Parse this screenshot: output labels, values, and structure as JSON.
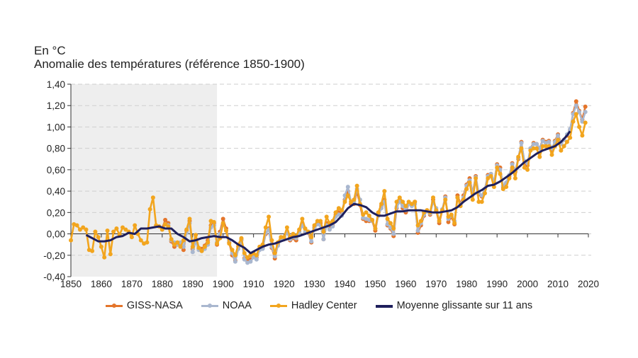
{
  "header": {
    "unit": "En °C",
    "title": "Anomalie des températures (référence 1850-1900)"
  },
  "chart_data": {
    "type": "line",
    "title": "Anomalie des températures (référence 1850-1900)",
    "ylabel": "En °C",
    "xlabel": "",
    "xlim": [
      1850,
      2020
    ],
    "ylim": [
      -0.4,
      1.4
    ],
    "grid": true,
    "reference_period_shaded": [
      1850,
      1898
    ],
    "x_ticks": [
      "1850",
      "1860",
      "1870",
      "1880",
      "1890",
      "1900",
      "1910",
      "1920",
      "1930",
      "1940",
      "1950",
      "1960",
      "1970",
      "1980",
      "1990",
      "2000",
      "2010",
      "2020"
    ],
    "y_ticks": [
      "1,40",
      "1,20",
      "1,00",
      "0,80",
      "0,60",
      "0,40",
      "0,20",
      "0,00",
      "-0,20",
      "-0,40"
    ],
    "legend_position": "bottom",
    "series": [
      {
        "name": "GISS-NASA",
        "color": "#e4752b",
        "x": [
          1880,
          1881,
          1882,
          1883,
          1884,
          1885,
          1886,
          1887,
          1888,
          1889,
          1890,
          1891,
          1892,
          1893,
          1894,
          1895,
          1896,
          1897,
          1898,
          1899,
          1900,
          1901,
          1902,
          1903,
          1904,
          1905,
          1906,
          1907,
          1908,
          1909,
          1910,
          1911,
          1912,
          1913,
          1914,
          1915,
          1916,
          1917,
          1918,
          1919,
          1920,
          1921,
          1922,
          1923,
          1924,
          1925,
          1926,
          1927,
          1928,
          1929,
          1930,
          1931,
          1932,
          1933,
          1934,
          1935,
          1936,
          1937,
          1938,
          1939,
          1940,
          1941,
          1942,
          1943,
          1944,
          1945,
          1946,
          1947,
          1948,
          1949,
          1950,
          1951,
          1952,
          1953,
          1954,
          1955,
          1956,
          1957,
          1958,
          1959,
          1960,
          1961,
          1962,
          1963,
          1964,
          1965,
          1966,
          1967,
          1968,
          1969,
          1970,
          1971,
          1972,
          1973,
          1974,
          1975,
          1976,
          1977,
          1978,
          1979,
          1980,
          1981,
          1982,
          1983,
          1984,
          1985,
          1986,
          1987,
          1988,
          1989,
          1990,
          1991,
          1992,
          1993,
          1994,
          1995,
          1996,
          1997,
          1998,
          1999,
          2000,
          2001,
          2002,
          2003,
          2004,
          2005,
          2006,
          2007,
          2008,
          2009,
          2010,
          2011,
          2012,
          2013,
          2014,
          2015,
          2016,
          2017,
          2018,
          2019
        ],
        "values": [
          0.05,
          0.13,
          0.1,
          -0.07,
          -0.12,
          -0.1,
          -0.1,
          -0.15,
          0.03,
          0.12,
          -0.14,
          -0.05,
          -0.14,
          -0.14,
          -0.11,
          -0.06,
          0.08,
          0.1,
          -0.1,
          0.02,
          0.14,
          0.05,
          -0.08,
          -0.2,
          -0.25,
          -0.12,
          -0.05,
          -0.23,
          -0.25,
          -0.24,
          -0.21,
          -0.22,
          -0.14,
          -0.13,
          0.0,
          0.05,
          -0.13,
          -0.23,
          -0.1,
          -0.05,
          -0.05,
          0.02,
          -0.06,
          -0.04,
          -0.06,
          0.02,
          0.1,
          0.01,
          0.01,
          -0.08,
          0.06,
          0.1,
          0.1,
          -0.05,
          0.1,
          0.05,
          0.08,
          0.18,
          0.2,
          0.18,
          0.32,
          0.4,
          0.28,
          0.28,
          0.4,
          0.27,
          0.14,
          0.12,
          0.12,
          0.12,
          0.03,
          0.18,
          0.26,
          0.32,
          0.08,
          0.05,
          -0.02,
          0.24,
          0.32,
          0.24,
          0.2,
          0.28,
          0.27,
          0.3,
          0.01,
          0.08,
          0.17,
          0.22,
          0.18,
          0.32,
          0.22,
          0.1,
          0.22,
          0.35,
          0.11,
          0.16,
          0.09,
          0.36,
          0.28,
          0.36,
          0.46,
          0.52,
          0.38,
          0.54,
          0.37,
          0.35,
          0.42,
          0.55,
          0.56,
          0.48,
          0.65,
          0.62,
          0.44,
          0.47,
          0.54,
          0.66,
          0.58,
          0.7,
          0.86,
          0.66,
          0.64,
          0.8,
          0.85,
          0.84,
          0.8,
          0.88,
          0.86,
          0.87,
          0.78,
          0.87,
          0.93,
          0.85,
          0.88,
          0.92,
          0.97,
          1.13,
          1.24,
          1.15,
          1.07,
          1.19
        ]
      },
      {
        "name": "NOAA",
        "color": "#a9b7cf",
        "x": [
          1880,
          1881,
          1882,
          1883,
          1884,
          1885,
          1886,
          1887,
          1888,
          1889,
          1890,
          1891,
          1892,
          1893,
          1894,
          1895,
          1896,
          1897,
          1898,
          1899,
          1900,
          1901,
          1902,
          1903,
          1904,
          1905,
          1906,
          1907,
          1908,
          1909,
          1910,
          1911,
          1912,
          1913,
          1914,
          1915,
          1916,
          1917,
          1918,
          1919,
          1920,
          1921,
          1922,
          1923,
          1924,
          1925,
          1926,
          1927,
          1928,
          1929,
          1930,
          1931,
          1932,
          1933,
          1934,
          1935,
          1936,
          1937,
          1938,
          1939,
          1940,
          1941,
          1942,
          1943,
          1944,
          1945,
          1946,
          1947,
          1948,
          1949,
          1950,
          1951,
          1952,
          1953,
          1954,
          1955,
          1956,
          1957,
          1958,
          1959,
          1960,
          1961,
          1962,
          1963,
          1964,
          1965,
          1966,
          1967,
          1968,
          1969,
          1970,
          1971,
          1972,
          1973,
          1974,
          1975,
          1976,
          1977,
          1978,
          1979,
          1980,
          1981,
          1982,
          1983,
          1984,
          1985,
          1986,
          1987,
          1988,
          1989,
          1990,
          1991,
          1992,
          1993,
          1994,
          1995,
          1996,
          1997,
          1998,
          1999,
          2000,
          2001,
          2002,
          2003,
          2004,
          2005,
          2006,
          2007,
          2008,
          2009,
          2010,
          2011,
          2012,
          2013,
          2014,
          2015,
          2016,
          2017,
          2018,
          2019
        ],
        "values": [
          0.04,
          0.09,
          0.08,
          -0.06,
          -0.08,
          -0.1,
          -0.08,
          -0.12,
          0.01,
          0.1,
          -0.17,
          -0.07,
          -0.15,
          -0.16,
          -0.14,
          -0.1,
          0.06,
          0.08,
          -0.08,
          0.0,
          0.1,
          0.03,
          -0.06,
          -0.18,
          -0.26,
          -0.14,
          -0.06,
          -0.24,
          -0.27,
          -0.26,
          -0.22,
          -0.24,
          -0.15,
          -0.14,
          0.01,
          0.04,
          -0.12,
          -0.21,
          -0.11,
          -0.06,
          -0.04,
          0.01,
          -0.05,
          -0.03,
          -0.04,
          0.01,
          0.08,
          0.02,
          0.02,
          -0.07,
          0.05,
          0.09,
          0.08,
          -0.05,
          0.08,
          0.04,
          0.07,
          0.16,
          0.18,
          0.17,
          0.36,
          0.44,
          0.3,
          0.3,
          0.42,
          0.32,
          0.15,
          0.14,
          0.13,
          0.12,
          0.05,
          0.17,
          0.24,
          0.3,
          0.09,
          0.06,
          0.0,
          0.25,
          0.3,
          0.26,
          0.22,
          0.28,
          0.26,
          0.28,
          0.03,
          0.1,
          0.18,
          0.21,
          0.19,
          0.3,
          0.24,
          0.12,
          0.23,
          0.34,
          0.14,
          0.17,
          0.12,
          0.34,
          0.27,
          0.34,
          0.45,
          0.5,
          0.38,
          0.53,
          0.38,
          0.36,
          0.42,
          0.54,
          0.56,
          0.49,
          0.64,
          0.6,
          0.45,
          0.48,
          0.55,
          0.65,
          0.59,
          0.71,
          0.85,
          0.68,
          0.66,
          0.8,
          0.84,
          0.84,
          0.8,
          0.87,
          0.85,
          0.86,
          0.8,
          0.86,
          0.92,
          0.84,
          0.88,
          0.93,
          0.98,
          1.12,
          1.2,
          1.14,
          1.05,
          1.14
        ]
      },
      {
        "name": "Hadley Center",
        "color": "#f2a51e",
        "x": [
          1850,
          1851,
          1852,
          1853,
          1854,
          1855,
          1856,
          1857,
          1858,
          1859,
          1860,
          1861,
          1862,
          1863,
          1864,
          1865,
          1866,
          1867,
          1868,
          1869,
          1870,
          1871,
          1872,
          1873,
          1874,
          1875,
          1876,
          1877,
          1878,
          1879,
          1880,
          1881,
          1882,
          1883,
          1884,
          1885,
          1886,
          1887,
          1888,
          1889,
          1890,
          1891,
          1892,
          1893,
          1894,
          1895,
          1896,
          1897,
          1898,
          1899,
          1900,
          1901,
          1902,
          1903,
          1904,
          1905,
          1906,
          1907,
          1908,
          1909,
          1910,
          1911,
          1912,
          1913,
          1914,
          1915,
          1916,
          1917,
          1918,
          1919,
          1920,
          1921,
          1922,
          1923,
          1924,
          1925,
          1926,
          1927,
          1928,
          1929,
          1930,
          1931,
          1932,
          1933,
          1934,
          1935,
          1936,
          1937,
          1938,
          1939,
          1940,
          1941,
          1942,
          1943,
          1944,
          1945,
          1946,
          1947,
          1948,
          1949,
          1950,
          1951,
          1952,
          1953,
          1954,
          1955,
          1956,
          1957,
          1958,
          1959,
          1960,
          1961,
          1962,
          1963,
          1964,
          1965,
          1966,
          1967,
          1968,
          1969,
          1970,
          1971,
          1972,
          1973,
          1974,
          1975,
          1976,
          1977,
          1978,
          1979,
          1980,
          1981,
          1982,
          1983,
          1984,
          1985,
          1986,
          1987,
          1988,
          1989,
          1990,
          1991,
          1992,
          1993,
          1994,
          1995,
          1996,
          1997,
          1998,
          1999,
          2000,
          2001,
          2002,
          2003,
          2004,
          2005,
          2006,
          2007,
          2008,
          2009,
          2010,
          2011,
          2012,
          2013,
          2014,
          2015,
          2016,
          2017,
          2018,
          2019
        ],
        "values": [
          -0.06,
          0.09,
          0.08,
          0.04,
          0.06,
          0.04,
          -0.15,
          -0.16,
          0.02,
          -0.03,
          -0.12,
          -0.22,
          0.03,
          -0.19,
          0.02,
          0.05,
          -0.01,
          0.06,
          0.04,
          0.02,
          -0.03,
          0.08,
          0.0,
          -0.06,
          -0.09,
          -0.08,
          0.23,
          0.34,
          0.08,
          0.07,
          0.04,
          0.09,
          0.07,
          -0.05,
          -0.1,
          -0.08,
          -0.12,
          -0.06,
          0.04,
          0.14,
          -0.12,
          -0.01,
          -0.13,
          -0.16,
          -0.12,
          -0.08,
          0.12,
          0.11,
          -0.09,
          -0.04,
          0.1,
          0.03,
          -0.09,
          -0.15,
          -0.2,
          -0.1,
          -0.04,
          -0.18,
          -0.22,
          -0.2,
          -0.18,
          -0.2,
          -0.12,
          -0.1,
          0.06,
          0.16,
          -0.06,
          -0.18,
          -0.08,
          -0.03,
          -0.03,
          0.06,
          -0.03,
          0.0,
          -0.02,
          0.04,
          0.14,
          0.05,
          0.02,
          -0.03,
          0.08,
          0.12,
          0.12,
          0.02,
          0.16,
          0.1,
          0.12,
          0.2,
          0.24,
          0.22,
          0.3,
          0.36,
          0.3,
          0.32,
          0.45,
          0.28,
          0.18,
          0.2,
          0.17,
          0.13,
          0.05,
          0.2,
          0.28,
          0.4,
          0.14,
          0.1,
          0.05,
          0.3,
          0.34,
          0.3,
          0.26,
          0.3,
          0.28,
          0.3,
          0.08,
          0.12,
          0.2,
          0.22,
          0.2,
          0.34,
          0.22,
          0.12,
          0.22,
          0.32,
          0.16,
          0.18,
          0.1,
          0.34,
          0.26,
          0.32,
          0.42,
          0.48,
          0.32,
          0.52,
          0.3,
          0.3,
          0.38,
          0.52,
          0.54,
          0.44,
          0.62,
          0.56,
          0.42,
          0.44,
          0.52,
          0.62,
          0.52,
          0.72,
          0.8,
          0.62,
          0.6,
          0.78,
          0.8,
          0.8,
          0.72,
          0.82,
          0.82,
          0.82,
          0.74,
          0.82,
          0.88,
          0.78,
          0.82,
          0.86,
          0.9,
          1.05,
          1.12,
          1.0,
          0.92,
          1.04
        ]
      },
      {
        "name": "Moyenne glissante sur 11 ans",
        "color": "#1e1f5c",
        "x": [
          1855,
          1857,
          1859,
          1861,
          1863,
          1865,
          1867,
          1869,
          1871,
          1873,
          1875,
          1877,
          1879,
          1881,
          1883,
          1885,
          1887,
          1889,
          1891,
          1893,
          1895,
          1897,
          1899,
          1901,
          1903,
          1905,
          1907,
          1909,
          1911,
          1913,
          1915,
          1917,
          1919,
          1921,
          1923,
          1925,
          1927,
          1929,
          1931,
          1933,
          1935,
          1937,
          1939,
          1941,
          1943,
          1945,
          1947,
          1949,
          1951,
          1953,
          1955,
          1957,
          1959,
          1961,
          1963,
          1965,
          1967,
          1969,
          1971,
          1973,
          1975,
          1977,
          1979,
          1981,
          1983,
          1985,
          1987,
          1989,
          1991,
          1993,
          1995,
          1997,
          1999,
          2001,
          2003,
          2005,
          2007,
          2009,
          2011,
          2013,
          2014
        ],
        "values": [
          -0.01,
          -0.04,
          -0.07,
          -0.07,
          -0.06,
          -0.03,
          -0.02,
          0.01,
          0.0,
          0.05,
          0.05,
          0.06,
          0.07,
          0.05,
          0.05,
          0.0,
          -0.03,
          -0.07,
          -0.06,
          -0.04,
          -0.03,
          -0.02,
          -0.03,
          -0.03,
          -0.06,
          -0.1,
          -0.13,
          -0.18,
          -0.15,
          -0.12,
          -0.1,
          -0.09,
          -0.07,
          -0.05,
          -0.03,
          -0.02,
          0.0,
          0.02,
          0.04,
          0.06,
          0.08,
          0.11,
          0.17,
          0.24,
          0.28,
          0.27,
          0.25,
          0.2,
          0.17,
          0.17,
          0.19,
          0.21,
          0.21,
          0.22,
          0.22,
          0.22,
          0.21,
          0.2,
          0.2,
          0.21,
          0.22,
          0.25,
          0.3,
          0.34,
          0.38,
          0.41,
          0.45,
          0.46,
          0.49,
          0.53,
          0.57,
          0.62,
          0.67,
          0.71,
          0.75,
          0.78,
          0.8,
          0.82,
          0.86,
          0.92,
          0.96
        ]
      }
    ]
  },
  "legend": [
    {
      "label": "GISS-NASA",
      "color": "#e4752b",
      "marker": true
    },
    {
      "label": "NOAA",
      "color": "#a9b7cf",
      "marker": true
    },
    {
      "label": "Hadley Center",
      "color": "#f2a51e",
      "marker": true
    },
    {
      "label": "Moyenne glissante sur 11 ans",
      "color": "#1e1f5c",
      "marker": false
    }
  ]
}
